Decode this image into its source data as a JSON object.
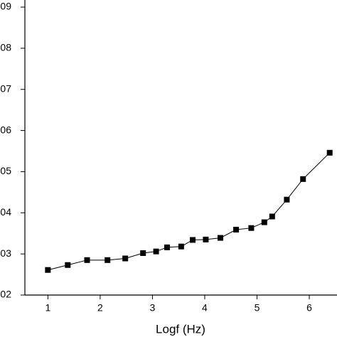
{
  "chart_data": {
    "type": "line",
    "x_label": "Logf (Hz)",
    "x": [
      1,
      1.38,
      1.75,
      2.14,
      2.48,
      2.82,
      3.07,
      3.28,
      3.55,
      3.77,
      4.02,
      4.3,
      4.6,
      4.89,
      5.14,
      5.29,
      5.57,
      5.88,
      6.39
    ],
    "series": [
      {
        "color": "#000000",
        "values": [
          2.61,
          2.73,
          2.85,
          2.85,
          2.89,
          3.02,
          3.06,
          3.16,
          3.18,
          3.34,
          3.35,
          3.39,
          3.59,
          3.63,
          3.77,
          3.91,
          4.32,
          4.82,
          5.46
        ]
      }
    ],
    "xlim": [
      0.56,
      6.53
    ],
    "xticks": [
      1,
      2,
      3,
      4,
      5,
      6
    ],
    "ylim": [
      2,
      9
    ],
    "yticks": [
      {
        "value": 2,
        "label": "02"
      },
      {
        "value": 3,
        "label": "03"
      },
      {
        "value": 4,
        "label": "04"
      },
      {
        "value": 5,
        "label": "05"
      },
      {
        "value": 6,
        "label": "06"
      },
      {
        "value": 7,
        "label": "07"
      },
      {
        "value": 8,
        "label": "08"
      },
      {
        "value": 9,
        "label": "09"
      }
    ]
  }
}
